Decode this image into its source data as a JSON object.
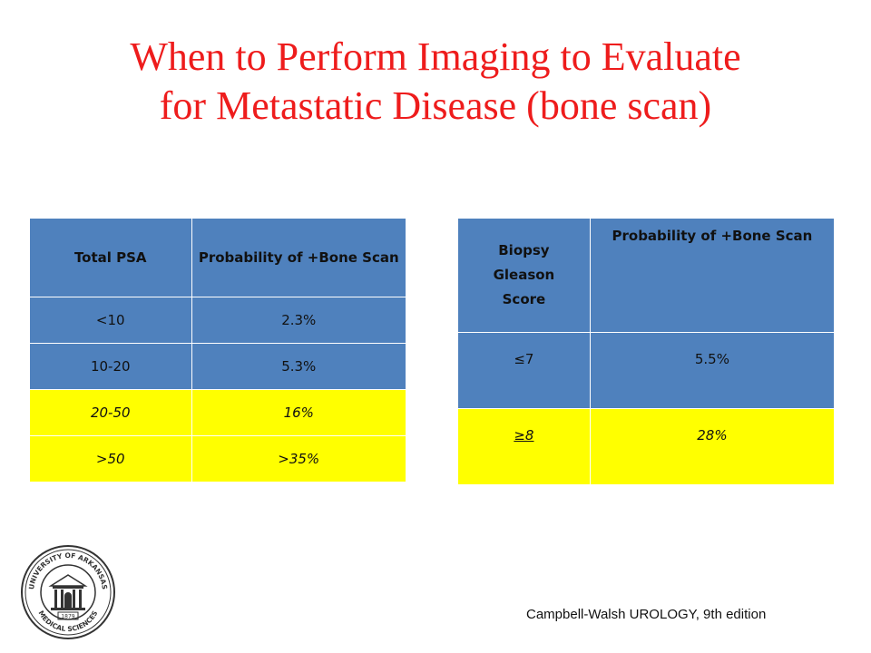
{
  "slide": {
    "title_line1": "When to Perform Imaging to Evaluate",
    "title_line2": "for Metastatic Disease (bone scan)",
    "citation": "Campbell-Walsh UROLOGY, 9th edition",
    "colors": {
      "title": "#ee1c1c",
      "row_blue": "#4f81bd",
      "row_yellow": "#ffff00"
    }
  },
  "psa_table": {
    "headers": [
      "Total PSA",
      "Probability of +Bone Scan"
    ],
    "rows": [
      {
        "psa": "<10",
        "prob": "2.3%",
        "highlight": false
      },
      {
        "psa": "10-20",
        "prob": "5.3%",
        "highlight": false
      },
      {
        "psa": "20-50",
        "prob": "16%",
        "highlight": true
      },
      {
        "psa": ">50",
        "prob": ">35%",
        "highlight": true
      }
    ]
  },
  "gleason_table": {
    "headers": [
      "Biopsy Gleason Score",
      "Probability of +Bone Scan"
    ],
    "rows": [
      {
        "score": "≤7",
        "prob": "5.5%",
        "highlight": false
      },
      {
        "score": "≥8",
        "prob": "28%",
        "highlight": true
      }
    ]
  },
  "seal": {
    "icon": "university-seal-icon",
    "text_top": "UNIVERSITY OF ARKANSAS",
    "text_bottom": "MEDICAL SCIENCES",
    "year": "1879"
  }
}
